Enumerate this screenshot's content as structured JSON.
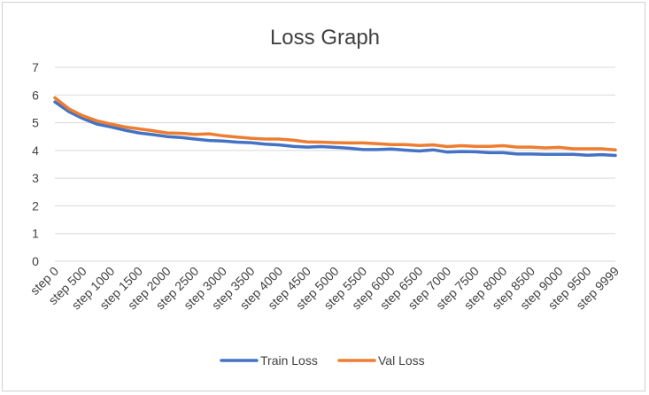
{
  "chart_data": {
    "type": "line",
    "title": "Loss Graph",
    "xlabel": "",
    "ylabel": "",
    "ylim": [
      0,
      7
    ],
    "yticks": [
      0,
      1,
      2,
      3,
      4,
      5,
      6,
      7
    ],
    "grid": true,
    "legend_position": "bottom",
    "categories": [
      "step 0",
      "step 250",
      "step 500",
      "step 750",
      "step 1000",
      "step 1250",
      "step 1500",
      "step 1750",
      "step 2000",
      "step 2250",
      "step 2500",
      "step 2750",
      "step 3000",
      "step 3250",
      "step 3500",
      "step 3750",
      "step 4000",
      "step 4250",
      "step 4500",
      "step 4750",
      "step 5000",
      "step 5250",
      "step 5500",
      "step 5750",
      "step 6000",
      "step 6250",
      "step 6500",
      "step 6750",
      "step 7000",
      "step 7250",
      "step 7500",
      "step 7750",
      "step 8000",
      "step 8250",
      "step 8500",
      "step 8750",
      "step 9000",
      "step 9250",
      "step 9500",
      "step 9750",
      "step 9999"
    ],
    "labeled_ticks": [
      "step 0",
      "step 500",
      "step 1000",
      "step 1500",
      "step 2000",
      "step 2500",
      "step 3000",
      "step 3500",
      "step 4000",
      "step 4500",
      "step 5000",
      "step 5500",
      "step 6000",
      "step 6500",
      "step 7000",
      "step 7500",
      "step 8000",
      "step 8500",
      "step 9000",
      "step 9500",
      "step 9999"
    ],
    "series": [
      {
        "name": "Train Loss",
        "color": "#4472C4",
        "values": [
          5.75,
          5.4,
          5.15,
          4.95,
          4.85,
          4.73,
          4.63,
          4.57,
          4.5,
          4.47,
          4.41,
          4.36,
          4.34,
          4.3,
          4.28,
          4.23,
          4.2,
          4.15,
          4.12,
          4.14,
          4.11,
          4.08,
          4.03,
          4.03,
          4.05,
          4.01,
          3.98,
          4.02,
          3.94,
          3.96,
          3.95,
          3.92,
          3.92,
          3.87,
          3.87,
          3.86,
          3.86,
          3.86,
          3.83,
          3.85,
          3.82
        ]
      },
      {
        "name": "Val Loss",
        "color": "#ED7D31",
        "values": [
          5.9,
          5.5,
          5.25,
          5.07,
          4.95,
          4.85,
          4.78,
          4.71,
          4.63,
          4.62,
          4.58,
          4.6,
          4.53,
          4.48,
          4.44,
          4.41,
          4.41,
          4.37,
          4.31,
          4.3,
          4.28,
          4.27,
          4.27,
          4.24,
          4.21,
          4.21,
          4.18,
          4.2,
          4.14,
          4.17,
          4.15,
          4.15,
          4.17,
          4.12,
          4.12,
          4.09,
          4.11,
          4.06,
          4.06,
          4.06,
          4.02
        ]
      }
    ]
  }
}
